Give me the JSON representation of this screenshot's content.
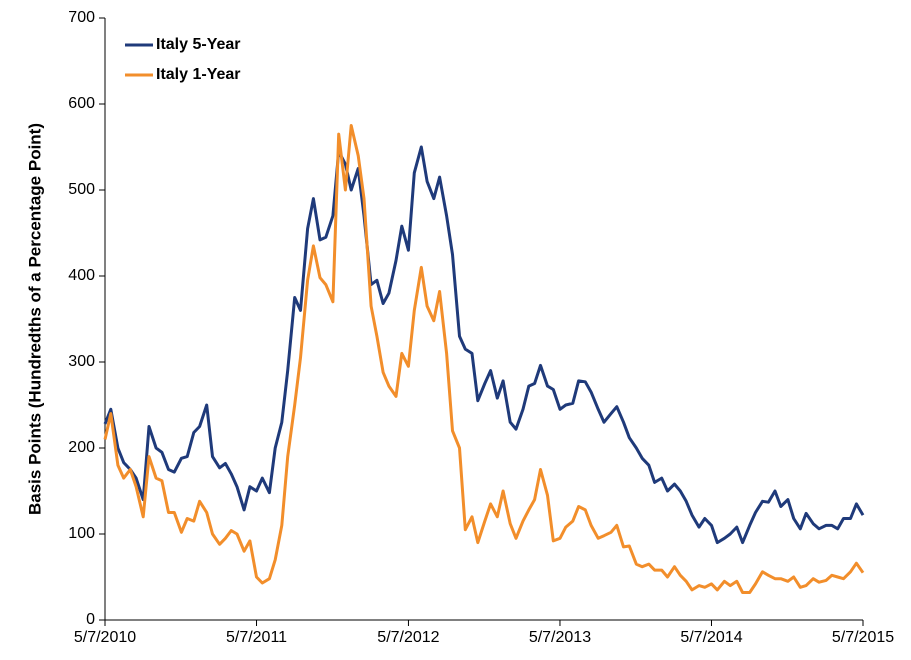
{
  "chart_data": {
    "type": "line",
    "ylabel": "Basis Points (Hundredths of a Percentage Point)",
    "x": [
      "5/7/2010",
      "5/21/2010",
      "6/7/2010",
      "6/21/2010",
      "7/7/2010",
      "7/21/2010",
      "8/7/2010",
      "8/21/2010",
      "9/7/2010",
      "9/21/2010",
      "10/7/2010",
      "10/21/2010",
      "11/7/2010",
      "11/21/2010",
      "12/7/2010",
      "12/21/2010",
      "1/7/2011",
      "1/21/2011",
      "2/7/2011",
      "2/21/2011",
      "3/7/2011",
      "3/21/2011",
      "4/7/2011",
      "4/21/2011",
      "5/7/2011",
      "5/21/2011",
      "6/7/2011",
      "6/21/2011",
      "7/7/2011",
      "7/21/2011",
      "8/7/2011",
      "8/21/2011",
      "9/7/2011",
      "9/21/2011",
      "10/7/2011",
      "10/21/2011",
      "11/7/2011",
      "11/21/2011",
      "12/7/2011",
      "12/21/2011",
      "1/7/2012",
      "1/21/2012",
      "2/7/2012",
      "2/21/2012",
      "3/7/2012",
      "3/21/2012",
      "4/7/2012",
      "4/21/2012",
      "5/7/2012",
      "5/21/2012",
      "6/7/2012",
      "6/21/2012",
      "7/7/2012",
      "7/21/2012",
      "8/7/2012",
      "8/21/2012",
      "9/7/2012",
      "9/21/2012",
      "10/7/2012",
      "10/21/2012",
      "11/7/2012",
      "11/21/2012",
      "12/7/2012",
      "12/21/2012",
      "1/7/2013",
      "1/21/2013",
      "2/7/2013",
      "2/21/2013",
      "3/7/2013",
      "3/21/2013",
      "4/7/2013",
      "4/21/2013",
      "5/7/2013",
      "5/21/2013",
      "6/7/2013",
      "6/21/2013",
      "7/7/2013",
      "7/21/2013",
      "8/7/2013",
      "8/21/2013",
      "9/7/2013",
      "9/21/2013",
      "10/7/2013",
      "10/21/2013",
      "11/7/2013",
      "11/21/2013",
      "12/7/2013",
      "12/21/2013",
      "1/7/2014",
      "1/21/2014",
      "2/7/2014",
      "2/21/2014",
      "3/7/2014",
      "3/21/2014",
      "4/7/2014",
      "4/21/2014",
      "5/7/2014",
      "5/21/2014",
      "6/7/2014",
      "6/21/2014",
      "7/7/2014",
      "7/21/2014",
      "8/7/2014",
      "8/21/2014",
      "9/7/2014",
      "9/21/2014",
      "10/7/2014",
      "10/21/2014",
      "11/7/2014",
      "11/21/2014",
      "12/7/2014",
      "12/21/2014",
      "1/7/2015",
      "1/21/2015",
      "2/7/2015",
      "2/21/2015",
      "3/7/2015",
      "3/21/2015",
      "4/7/2015",
      "4/21/2015",
      "5/7/2015"
    ],
    "series": [
      {
        "name": "Italy 5-Year",
        "color": "#1f3a7a",
        "values": [
          228,
          245,
          200,
          183,
          175,
          165,
          140,
          225,
          200,
          195,
          175,
          172,
          188,
          190,
          218,
          225,
          250,
          190,
          177,
          182,
          170,
          155,
          128,
          155,
          150,
          165,
          148,
          200,
          230,
          290,
          375,
          360,
          455,
          490,
          442,
          445,
          470,
          545,
          530,
          500,
          525,
          470,
          390,
          395,
          368,
          380,
          418,
          458,
          430,
          520,
          550,
          510,
          490,
          515,
          470,
          425,
          330,
          315,
          310,
          255,
          275,
          290,
          258,
          278,
          230,
          222,
          245,
          272,
          275,
          296,
          272,
          268,
          245,
          250,
          252,
          278,
          277,
          265,
          245,
          230,
          240,
          248,
          230,
          212,
          200,
          188,
          180,
          160,
          165,
          150,
          158,
          150,
          138,
          122,
          108,
          118,
          110,
          90,
          95,
          100,
          108,
          90,
          110,
          125,
          138,
          137,
          150,
          132,
          140,
          118,
          106,
          124,
          112,
          106,
          110,
          110,
          106,
          118,
          118,
          135,
          122
        ]
      },
      {
        "name": "Italy 1-Year",
        "color": "#f28e2b",
        "values": [
          210,
          240,
          180,
          165,
          175,
          155,
          120,
          190,
          165,
          162,
          125,
          125,
          102,
          118,
          115,
          138,
          125,
          100,
          88,
          95,
          104,
          100,
          80,
          92,
          50,
          43,
          48,
          70,
          110,
          190,
          250,
          305,
          395,
          435,
          398,
          390,
          370,
          565,
          500,
          575,
          540,
          490,
          365,
          330,
          288,
          272,
          260,
          310,
          295,
          360,
          410,
          365,
          348,
          382,
          310,
          220,
          200,
          105,
          120,
          90,
          115,
          135,
          120,
          150,
          112,
          95,
          115,
          128,
          140,
          175,
          145,
          92,
          95,
          108,
          115,
          132,
          128,
          110,
          95,
          98,
          102,
          110,
          85,
          86,
          65,
          62,
          65,
          58,
          58,
          50,
          62,
          52,
          45,
          35,
          40,
          38,
          42,
          35,
          45,
          40,
          45,
          32,
          32,
          42,
          56,
          52,
          48,
          48,
          45,
          50,
          38,
          40,
          48,
          44,
          46,
          52,
          50,
          48,
          56,
          66,
          55
        ]
      }
    ],
    "xlim": [
      "5/7/2010",
      "5/7/2015"
    ],
    "xticks": [
      "5/7/2010",
      "5/7/2011",
      "5/7/2012",
      "5/7/2013",
      "5/7/2014",
      "5/7/2015"
    ],
    "ylim": [
      0,
      700
    ],
    "yticks": [
      0,
      100,
      200,
      300,
      400,
      500,
      600,
      700
    ],
    "grid": false,
    "legend": "upper left"
  }
}
